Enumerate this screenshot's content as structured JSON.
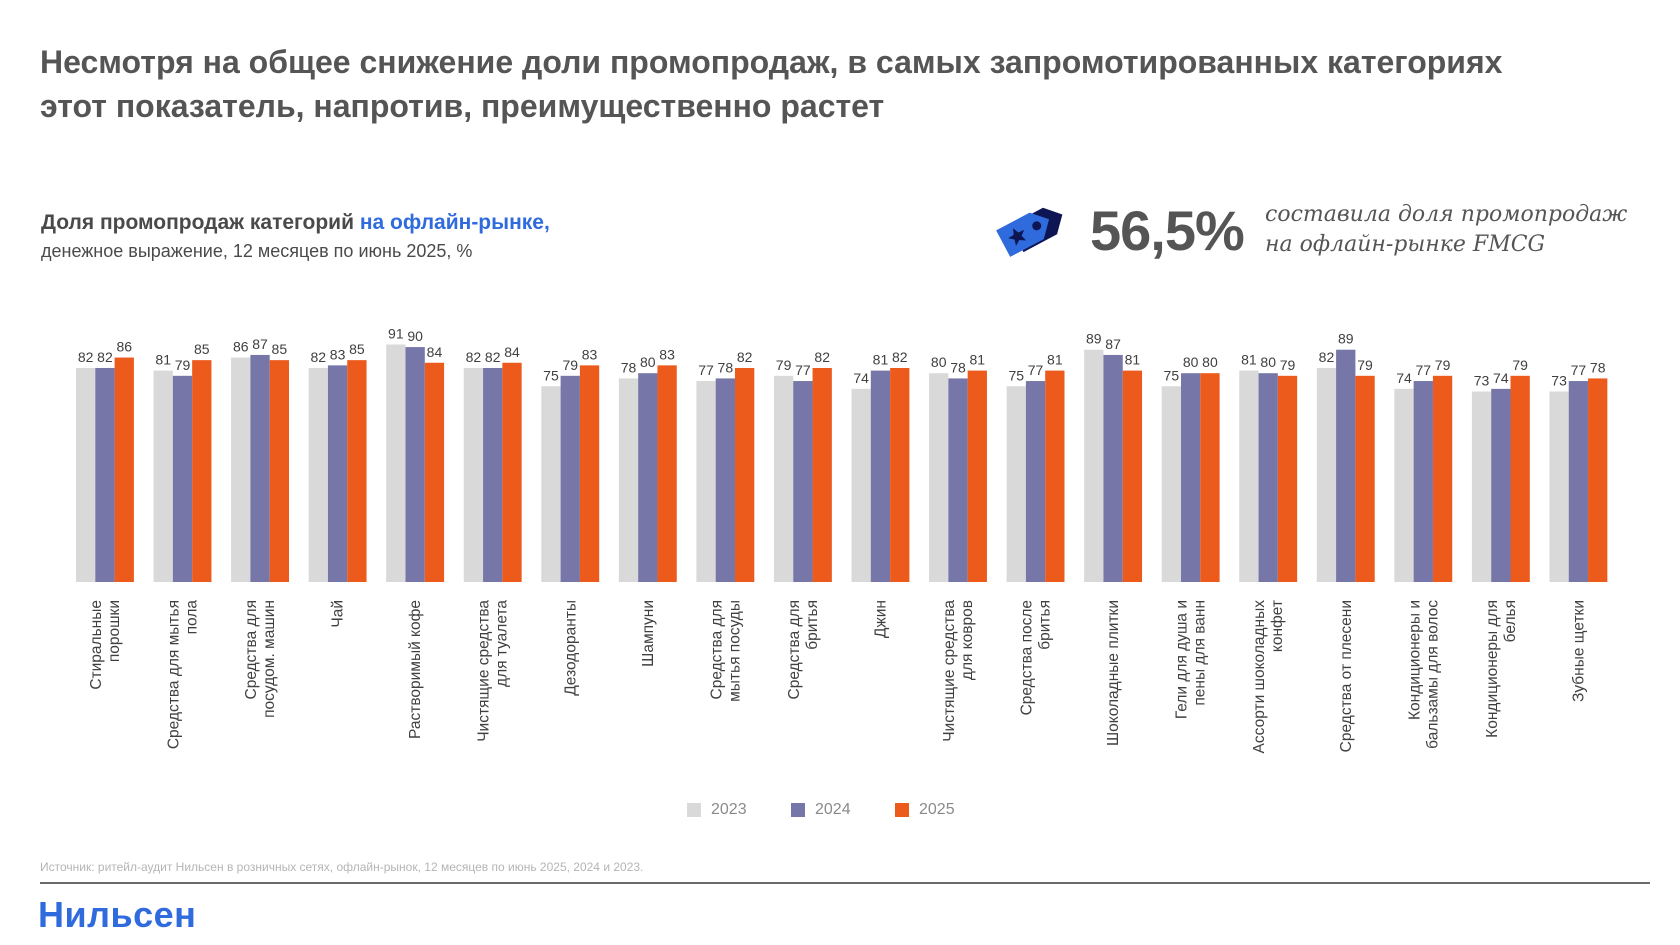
{
  "header": {
    "title": "Несмотря на общее снижение доли промопродаж, в самых запромотированных категориях этот показатель, напротив, преимущественно растет"
  },
  "chart_header": {
    "title_main": "Доля промопродаж категорий ",
    "title_highlight": "на офлайн-рынке,",
    "subtitle": "денежное выражение, 12 месяцев по июнь 2025, %"
  },
  "kpi": {
    "icon": "price-tag-star-icon",
    "value": "56,5%",
    "text_line1": "составила доля промопродаж",
    "text_line2": "на офлайн-рынке FMCG"
  },
  "colors": {
    "series_2023": "#d9d9d9",
    "series_2024": "#7676a9",
    "series_2025": "#ec5a1c",
    "accent_blue": "#2f6bdc"
  },
  "chart_data": {
    "type": "bar",
    "title": "Доля промопродаж категорий на офлайн-рынке, денежное выражение, 12 месяцев по июнь 2025, %",
    "xlabel": "",
    "ylabel": "",
    "ylim": [
      0,
      100
    ],
    "grid": false,
    "legend_position": "bottom-center",
    "categories": [
      [
        "Стиральные",
        "порошки"
      ],
      [
        "Средства для мытья",
        "пола"
      ],
      [
        "Средства для",
        "посудом. машин"
      ],
      [
        "Чай"
      ],
      [
        "Растворимый кофе"
      ],
      [
        "Чистящие средства",
        "для туалета"
      ],
      [
        "Дезодоранты"
      ],
      [
        "Шампуни"
      ],
      [
        "Средства для",
        "мытья посуды"
      ],
      [
        "Средства для",
        "бритья"
      ],
      [
        "Джин"
      ],
      [
        "Чистящие средства",
        "для ковров"
      ],
      [
        "Средства после",
        "бритья"
      ],
      [
        "Шоколадные плитки"
      ],
      [
        "Гели для душа и",
        "пены для ванн"
      ],
      [
        "Ассорти шоколадных",
        "конфет"
      ],
      [
        "Средства от плесени"
      ],
      [
        "Кондиционеры и",
        "бальзамы для волос"
      ],
      [
        "Кондиционеры для",
        "белья"
      ],
      [
        "Зубные щетки"
      ]
    ],
    "series": [
      {
        "name": "2023",
        "values": [
          82,
          81,
          86,
          82,
          91,
          82,
          75,
          78,
          77,
          79,
          74,
          80,
          75,
          89,
          75,
          81,
          82,
          74,
          73,
          73
        ]
      },
      {
        "name": "2024",
        "values": [
          82,
          79,
          87,
          83,
          90,
          82,
          79,
          80,
          78,
          77,
          81,
          78,
          77,
          87,
          80,
          80,
          89,
          77,
          74,
          77
        ]
      },
      {
        "name": "2025",
        "values": [
          86,
          85,
          85,
          85,
          84,
          84,
          83,
          83,
          82,
          82,
          82,
          81,
          81,
          81,
          80,
          79,
          79,
          79,
          79,
          78
        ]
      }
    ]
  },
  "legend": [
    {
      "label": "2023"
    },
    {
      "label": "2024"
    },
    {
      "label": "2025"
    }
  ],
  "footer": {
    "source": "Источник: ритейл-аудит Нильсен в розничных сетях, офлайн-рынок, 12 месяцев по июнь 2025, 2024 и 2023.",
    "logo": "Нильсен"
  }
}
